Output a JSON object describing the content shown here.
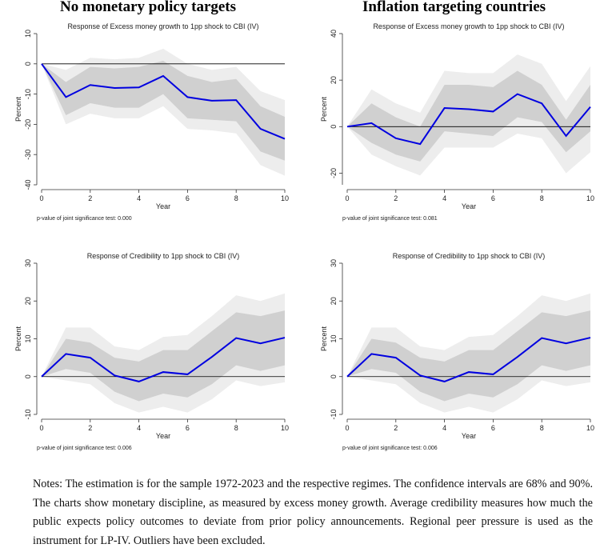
{
  "column_titles": {
    "left": "No monetary policy targets",
    "right": "Inflation targeting countries"
  },
  "notes": "Notes: The estimation is for the sample 1972-2023 and the respective regimes. The confidence intervals are 68% and 90%. The charts show monetary discipline, as measured by excess money growth. Average credibility measures how much the public expects policy outcomes to deviate from prior policy announcements. Regional peer pressure is used as the instrument for LP-IV. Outliers have been excluded.",
  "colors": {
    "line": "#0000e0",
    "band68": "#d0d0d0",
    "band90": "#ededed",
    "zero": "#000000"
  },
  "chart_data": [
    {
      "type": "line",
      "title": "Response of Excess money growth to 1pp shock to CBI (IV)",
      "xlabel": "Year",
      "ylabel": "Percent",
      "xlim": [
        0,
        10
      ],
      "ylim": [
        -40,
        10
      ],
      "xticks": [
        0,
        2,
        4,
        6,
        8,
        10
      ],
      "yticks": [
        10,
        0,
        -10,
        -20,
        -30,
        -40
      ],
      "footnote": "p-value of joint significance test: 0.000",
      "grid": false,
      "x": [
        0,
        1,
        2,
        3,
        4,
        5,
        6,
        7,
        8,
        9,
        10
      ],
      "series": [
        {
          "values": [
            0,
            -11,
            -7,
            -8,
            -7.8,
            -4,
            -11,
            -12.2,
            -12,
            -21.5,
            -24.8
          ]
        }
      ],
      "band68": {
        "upper": [
          0,
          -6,
          -1,
          -1.5,
          -1,
          1,
          -4,
          -6,
          -5,
          -14,
          -17.5
        ],
        "lower": [
          0,
          -17,
          -13,
          -14.5,
          -14.5,
          -10,
          -18,
          -18.5,
          -19,
          -29,
          -32
        ]
      },
      "band90": {
        "upper": [
          0,
          -2,
          2,
          1.5,
          2,
          5,
          0,
          -2,
          -1,
          -9,
          -12
        ],
        "lower": [
          0,
          -20,
          -16.5,
          -18,
          -18,
          -14,
          -21.5,
          -22,
          -23,
          -33.5,
          -37
        ]
      }
    },
    {
      "type": "line",
      "title": "Response of Excess money growth to 1pp shock to CBI (IV)",
      "xlabel": "Year",
      "ylabel": "Percent",
      "xlim": [
        0,
        10
      ],
      "ylim": [
        -25,
        40
      ],
      "xticks": [
        0,
        2,
        4,
        6,
        8,
        10
      ],
      "yticks": [
        40,
        20,
        0,
        -20
      ],
      "footnote": "p-value of joint significance test: 0.081",
      "grid": false,
      "x": [
        0,
        1,
        2,
        3,
        4,
        5,
        6,
        7,
        8,
        9,
        10
      ],
      "series": [
        {
          "values": [
            0,
            1.5,
            -5,
            -7.5,
            8,
            7.5,
            6.5,
            14,
            10,
            -4,
            8.5
          ]
        }
      ],
      "band68": {
        "upper": [
          0,
          10,
          4,
          0,
          18,
          18,
          17,
          24,
          18,
          3,
          18
        ],
        "lower": [
          0,
          -7,
          -12,
          -15,
          -2,
          -3,
          -4,
          4,
          2,
          -11,
          -2
        ]
      },
      "band90": {
        "upper": [
          0,
          16,
          10,
          6,
          24,
          23,
          23,
          31,
          27,
          11,
          26
        ],
        "lower": [
          0,
          -12,
          -17,
          -21,
          -9,
          -9,
          -9,
          -3,
          -5,
          -20,
          -11
        ]
      }
    },
    {
      "type": "line",
      "title": "Response of Credibility to 1pp shock to CBI (IV)",
      "xlabel": "Year",
      "ylabel": "Percent",
      "xlim": [
        0,
        10
      ],
      "ylim": [
        -10,
        30
      ],
      "xticks": [
        0,
        2,
        4,
        6,
        8,
        10
      ],
      "yticks": [
        30,
        20,
        10,
        0,
        -10
      ],
      "footnote": "p-value of joint significance test: 0.006",
      "grid": false,
      "x": [
        0,
        1,
        2,
        3,
        4,
        5,
        6,
        7,
        8,
        9,
        10
      ],
      "series": [
        {
          "values": [
            0,
            6,
            5,
            0.3,
            -1.3,
            1.2,
            0.6,
            5.2,
            10.2,
            8.8,
            10.3
          ]
        }
      ],
      "band68": {
        "upper": [
          0,
          10,
          9,
          5,
          4,
          7,
          7,
          12,
          17,
          16,
          17.5
        ],
        "lower": [
          0,
          2,
          1,
          -4,
          -6.5,
          -4.5,
          -5.5,
          -2,
          3,
          1.5,
          3
        ]
      },
      "band90": {
        "upper": [
          0,
          13,
          13,
          8,
          7,
          10.5,
          11,
          16,
          21.5,
          20,
          22
        ],
        "lower": [
          0,
          -1,
          -2,
          -7,
          -9.5,
          -8,
          -9.5,
          -6,
          -1,
          -2.5,
          -1.5
        ]
      }
    },
    {
      "type": "line",
      "title": "Response of Credibility to 1pp shock to CBI (IV)",
      "xlabel": "Year",
      "ylabel": "Percent",
      "xlim": [
        0,
        10
      ],
      "ylim": [
        -10,
        30
      ],
      "xticks": [
        0,
        2,
        4,
        6,
        8,
        10
      ],
      "yticks": [
        30,
        20,
        10,
        0,
        -10
      ],
      "footnote": "p-value of joint significance test: 0.006",
      "grid": false,
      "x": [
        0,
        1,
        2,
        3,
        4,
        5,
        6,
        7,
        8,
        9,
        10
      ],
      "series": [
        {
          "values": [
            0,
            6,
            5,
            0.3,
            -1.3,
            1.2,
            0.6,
            5.2,
            10.2,
            8.8,
            10.3
          ]
        }
      ],
      "band68": {
        "upper": [
          0,
          10,
          9,
          5,
          4,
          7,
          7,
          12,
          17,
          16,
          17.5
        ],
        "lower": [
          0,
          2,
          1,
          -4,
          -6.5,
          -4.5,
          -5.5,
          -2,
          3,
          1.5,
          3
        ]
      },
      "band90": {
        "upper": [
          0,
          13,
          13,
          8,
          7,
          10.5,
          11,
          16,
          21.5,
          20,
          22
        ],
        "lower": [
          0,
          -1,
          -2,
          -7,
          -9.5,
          -8,
          -9.5,
          -6,
          -1,
          -2.5,
          -1.5
        ]
      }
    }
  ]
}
